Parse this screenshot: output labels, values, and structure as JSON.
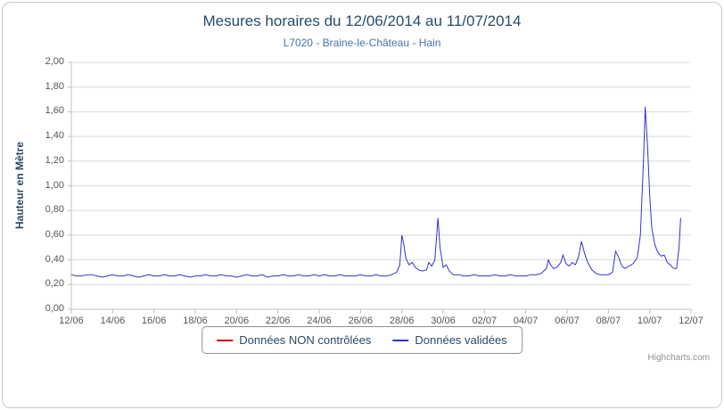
{
  "chart": {
    "title": "Mesures horaires du 12/06/2014 au 11/07/2014",
    "subtitle": "L7020 - Braine-le-Château - Hain",
    "y_axis_title": "Hauteur en Mètre",
    "credits": "Highcharts.com",
    "legend": [
      {
        "label": "Données NON contrôlées",
        "color": "#cc0000"
      },
      {
        "label": "Données validées",
        "color": "#3333cc"
      }
    ]
  },
  "chart_data": {
    "type": "line",
    "title": "Mesures horaires du 12/06/2014 au 11/07/2014",
    "subtitle": "L7020 - Braine-le-Château - Hain",
    "xlabel": "",
    "ylabel": "Hauteur en Mètre",
    "xlim": [
      0,
      30
    ],
    "ylim": [
      0,
      2
    ],
    "grid": "horizontal",
    "legend_position": "bottom",
    "x_tick_values": [
      0,
      2,
      4,
      6,
      8,
      10,
      12,
      14,
      16,
      18,
      20,
      22,
      24,
      26,
      28,
      30
    ],
    "x_tick_labels": [
      "12/06",
      "14/06",
      "16/06",
      "18/06",
      "20/06",
      "22/06",
      "24/06",
      "26/06",
      "28/06",
      "30/06",
      "02/07",
      "04/07",
      "06/07",
      "08/07",
      "10/07",
      "12/07"
    ],
    "y_tick_values": [
      0,
      0.2,
      0.4,
      0.6,
      0.8,
      1.0,
      1.2,
      1.4,
      1.6,
      1.8,
      2.0
    ],
    "y_tick_labels": [
      "0,00",
      "0,20",
      "0,40",
      "0,60",
      "0,80",
      "1,00",
      "1,20",
      "1,40",
      "1,60",
      "1,80",
      "2,00"
    ],
    "series": [
      {
        "name": "Données NON contrôlées",
        "color": "#cc0000",
        "points": []
      },
      {
        "name": "Données validées",
        "color": "#3333cc",
        "points": [
          [
            0,
            0.28
          ],
          [
            0.25,
            0.27
          ],
          [
            0.5,
            0.27
          ],
          [
            0.75,
            0.28
          ],
          [
            1,
            0.28
          ],
          [
            1.25,
            0.27
          ],
          [
            1.5,
            0.26
          ],
          [
            1.75,
            0.27
          ],
          [
            2,
            0.28
          ],
          [
            2.25,
            0.27
          ],
          [
            2.5,
            0.27
          ],
          [
            2.75,
            0.28
          ],
          [
            3,
            0.27
          ],
          [
            3.25,
            0.26
          ],
          [
            3.5,
            0.27
          ],
          [
            3.75,
            0.28
          ],
          [
            4,
            0.27
          ],
          [
            4.25,
            0.27
          ],
          [
            4.5,
            0.28
          ],
          [
            4.75,
            0.27
          ],
          [
            5,
            0.27
          ],
          [
            5.25,
            0.28
          ],
          [
            5.5,
            0.27
          ],
          [
            5.75,
            0.26
          ],
          [
            6,
            0.27
          ],
          [
            6.25,
            0.27
          ],
          [
            6.5,
            0.28
          ],
          [
            6.75,
            0.27
          ],
          [
            7,
            0.27
          ],
          [
            7.25,
            0.28
          ],
          [
            7.5,
            0.27
          ],
          [
            7.75,
            0.27
          ],
          [
            8,
            0.26
          ],
          [
            8.25,
            0.27
          ],
          [
            8.5,
            0.28
          ],
          [
            8.75,
            0.27
          ],
          [
            9,
            0.27
          ],
          [
            9.25,
            0.28
          ],
          [
            9.5,
            0.26
          ],
          [
            9.75,
            0.27
          ],
          [
            10,
            0.27
          ],
          [
            10.25,
            0.28
          ],
          [
            10.5,
            0.27
          ],
          [
            10.75,
            0.27
          ],
          [
            11,
            0.28
          ],
          [
            11.25,
            0.27
          ],
          [
            11.5,
            0.27
          ],
          [
            11.75,
            0.28
          ],
          [
            12,
            0.27
          ],
          [
            12.25,
            0.28
          ],
          [
            12.5,
            0.27
          ],
          [
            12.75,
            0.27
          ],
          [
            13,
            0.28
          ],
          [
            13.25,
            0.27
          ],
          [
            13.5,
            0.27
          ],
          [
            13.75,
            0.27
          ],
          [
            14,
            0.28
          ],
          [
            14.25,
            0.27
          ],
          [
            14.5,
            0.27
          ],
          [
            14.75,
            0.28
          ],
          [
            15,
            0.27
          ],
          [
            15.25,
            0.27
          ],
          [
            15.5,
            0.28
          ],
          [
            15.75,
            0.3
          ],
          [
            15.9,
            0.36
          ],
          [
            16,
            0.6
          ],
          [
            16.1,
            0.52
          ],
          [
            16.2,
            0.41
          ],
          [
            16.35,
            0.36
          ],
          [
            16.5,
            0.38
          ],
          [
            16.65,
            0.34
          ],
          [
            16.8,
            0.32
          ],
          [
            17,
            0.31
          ],
          [
            17.2,
            0.32
          ],
          [
            17.3,
            0.38
          ],
          [
            17.45,
            0.35
          ],
          [
            17.6,
            0.4
          ],
          [
            17.75,
            0.74
          ],
          [
            17.85,
            0.5
          ],
          [
            18,
            0.34
          ],
          [
            18.15,
            0.36
          ],
          [
            18.3,
            0.31
          ],
          [
            18.5,
            0.28
          ],
          [
            18.75,
            0.28
          ],
          [
            19,
            0.27
          ],
          [
            19.25,
            0.27
          ],
          [
            19.5,
            0.28
          ],
          [
            19.75,
            0.27
          ],
          [
            20,
            0.27
          ],
          [
            20.25,
            0.27
          ],
          [
            20.5,
            0.28
          ],
          [
            20.75,
            0.27
          ],
          [
            21,
            0.27
          ],
          [
            21.25,
            0.28
          ],
          [
            21.5,
            0.27
          ],
          [
            21.75,
            0.27
          ],
          [
            22,
            0.27
          ],
          [
            22.25,
            0.28
          ],
          [
            22.5,
            0.28
          ],
          [
            22.75,
            0.29
          ],
          [
            23,
            0.33
          ],
          [
            23.1,
            0.4
          ],
          [
            23.2,
            0.36
          ],
          [
            23.35,
            0.33
          ],
          [
            23.5,
            0.34
          ],
          [
            23.7,
            0.38
          ],
          [
            23.8,
            0.44
          ],
          [
            23.95,
            0.37
          ],
          [
            24.1,
            0.35
          ],
          [
            24.25,
            0.38
          ],
          [
            24.4,
            0.36
          ],
          [
            24.55,
            0.42
          ],
          [
            24.7,
            0.55
          ],
          [
            24.85,
            0.45
          ],
          [
            25,
            0.38
          ],
          [
            25.2,
            0.32
          ],
          [
            25.4,
            0.29
          ],
          [
            25.6,
            0.28
          ],
          [
            25.8,
            0.28
          ],
          [
            26,
            0.28
          ],
          [
            26.2,
            0.3
          ],
          [
            26.35,
            0.47
          ],
          [
            26.5,
            0.42
          ],
          [
            26.65,
            0.35
          ],
          [
            26.8,
            0.33
          ],
          [
            27,
            0.35
          ],
          [
            27.2,
            0.37
          ],
          [
            27.4,
            0.42
          ],
          [
            27.55,
            0.6
          ],
          [
            27.7,
            1.2
          ],
          [
            27.78,
            1.64
          ],
          [
            27.9,
            1.32
          ],
          [
            28,
            0.92
          ],
          [
            28.1,
            0.66
          ],
          [
            28.25,
            0.52
          ],
          [
            28.4,
            0.46
          ],
          [
            28.55,
            0.43
          ],
          [
            28.7,
            0.44
          ],
          [
            28.85,
            0.38
          ],
          [
            29,
            0.36
          ],
          [
            29.1,
            0.34
          ],
          [
            29.2,
            0.33
          ],
          [
            29.3,
            0.33
          ],
          [
            29.42,
            0.5
          ],
          [
            29.5,
            0.74
          ]
        ]
      }
    ]
  }
}
